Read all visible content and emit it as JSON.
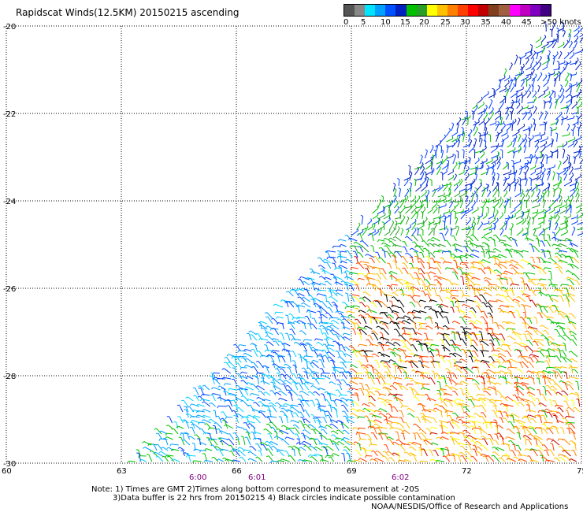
{
  "title": "Rapidscat Winds(12.5KM) 20150215 ascending",
  "legend": {
    "labels": [
      "0",
      "5",
      "10",
      "15",
      "20",
      "25",
      "30",
      "35",
      "40",
      "45",
      ">50 knots"
    ],
    "colors": [
      "#555555",
      "#888888",
      "#00e5ff",
      "#00a0ff",
      "#0050ff",
      "#0020c0",
      "#00c000",
      "#28a028",
      "#ffff00",
      "#ffc000",
      "#ff8000",
      "#ff4000",
      "#ff0000",
      "#c00000",
      "#804020",
      "#a06040",
      "#ff00ff",
      "#c000c0",
      "#8000c0",
      "#400080"
    ]
  },
  "axes": {
    "lat_labels": [
      "-20",
      "-22",
      "-24",
      "-26",
      "-28",
      "-30"
    ],
    "lon_labels": [
      "60",
      "63",
      "66",
      "69",
      "72",
      "75"
    ]
  },
  "times": [
    "6:00",
    "6:01",
    "6:02"
  ],
  "time_color": "#800080",
  "notes": {
    "line1": "Note: 1) Times are GMT 2)Times along bottom correspond to measurement at -20S",
    "line2": "3)Data buffer is 22 hrs from 20150215 4) Black circles indicate possible contamination"
  },
  "credit": "NOAA/NESDIS/Office of Research and Applications"
}
